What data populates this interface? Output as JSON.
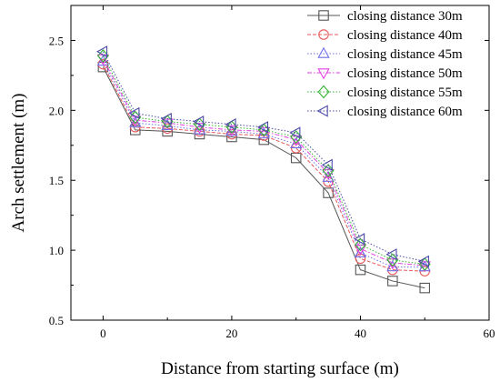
{
  "chart_data": {
    "type": "line",
    "title": "",
    "xlabel": "Distance from starting surface (m)",
    "ylabel": "Arch settlement (m)",
    "xlim": [
      -5,
      60
    ],
    "ylim": [
      0.5,
      2.75
    ],
    "xticks": [
      0,
      20,
      40,
      60
    ],
    "yticks": [
      0.5,
      1.0,
      1.5,
      2.0,
      2.5
    ],
    "grid": false,
    "legend_position": "top-right",
    "x": [
      0,
      5,
      10,
      15,
      20,
      25,
      30,
      35,
      40,
      45,
      50
    ],
    "series": [
      {
        "name": "closing distance 30m",
        "color": "#555555",
        "marker": "square",
        "dash": "solid",
        "values": [
          2.31,
          1.86,
          1.85,
          1.83,
          1.81,
          1.79,
          1.66,
          1.41,
          0.86,
          0.78,
          0.73
        ]
      },
      {
        "name": "closing distance 40m",
        "color": "#e8585b",
        "marker": "circle",
        "dash": "dash",
        "values": [
          2.33,
          1.88,
          1.87,
          1.85,
          1.83,
          1.82,
          1.73,
          1.49,
          0.94,
          0.86,
          0.85
        ]
      },
      {
        "name": "closing distance 45m",
        "color": "#6f6fe8",
        "marker": "triangle-up",
        "dash": "dot",
        "values": [
          2.35,
          1.91,
          1.89,
          1.86,
          1.85,
          1.83,
          1.76,
          1.52,
          0.98,
          0.88,
          0.88
        ]
      },
      {
        "name": "closing distance 50m",
        "color": "#e040e0",
        "marker": "triangle-down",
        "dash": "dashdot",
        "values": [
          2.37,
          1.93,
          1.91,
          1.88,
          1.86,
          1.85,
          1.79,
          1.55,
          1.01,
          0.91,
          0.89
        ]
      },
      {
        "name": "closing distance 55m",
        "color": "#35b535",
        "marker": "diamond",
        "dash": "dot",
        "values": [
          2.39,
          1.95,
          1.92,
          1.9,
          1.88,
          1.86,
          1.81,
          1.57,
          1.04,
          0.93,
          0.9
        ]
      },
      {
        "name": "closing distance 60m",
        "color": "#4a4aa8",
        "marker": "triangle-left",
        "dash": "dot",
        "values": [
          2.42,
          1.98,
          1.94,
          1.92,
          1.9,
          1.88,
          1.84,
          1.61,
          1.08,
          0.97,
          0.92
        ]
      }
    ]
  }
}
